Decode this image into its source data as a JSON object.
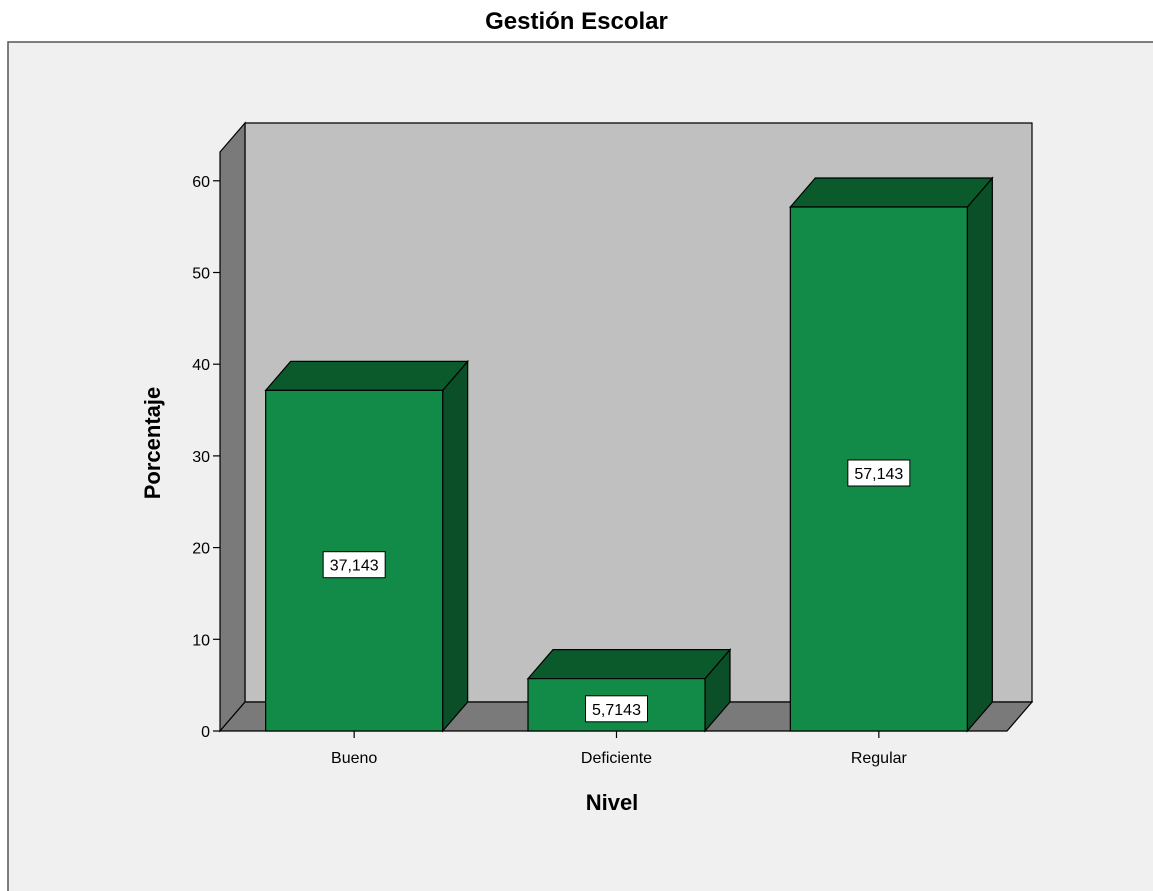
{
  "chart_data": {
    "type": "bar",
    "title": "Gestión Escolar",
    "xlabel": "Nivel",
    "ylabel": "Porcentaje",
    "categories": [
      "Bueno",
      "Deficiente",
      "Regular"
    ],
    "values": [
      37.143,
      5.7143,
      57.143
    ],
    "value_labels": [
      "37,143",
      "5,7143",
      "57,143"
    ],
    "ylim": [
      0,
      65
    ],
    "yticks": [
      0,
      10,
      20,
      30,
      40,
      50,
      60
    ],
    "grid": false,
    "legend": "none",
    "style": "3d",
    "colors": {
      "bar_front": "#138b48",
      "bar_top": "#0b5a2c",
      "bar_side": "#0a4f27",
      "back_wall": "#c0c0c0",
      "side_wall": "#7a7a7a",
      "floor": "#7a7a7a",
      "frame_background": "#f0f0f0"
    }
  }
}
